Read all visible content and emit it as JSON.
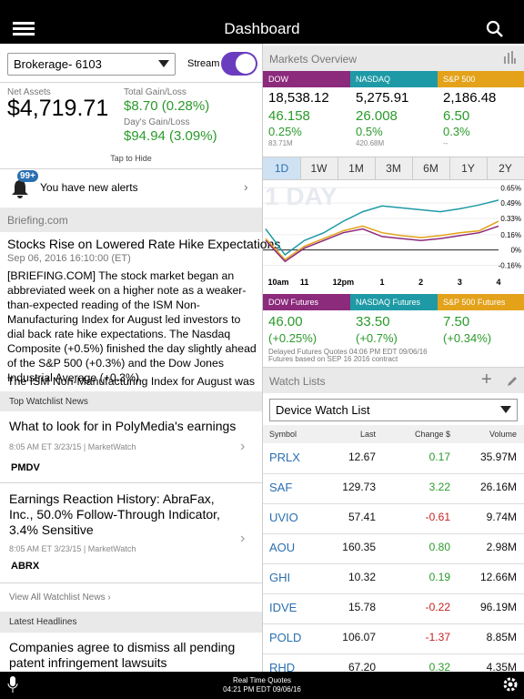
{
  "header": {
    "title": "Dashboard"
  },
  "account": {
    "name": "Brokerage- 6103",
    "stream": "Stream",
    "net_assets_label": "Net Assets",
    "net_assets": "$4,719.71",
    "total_gain_label": "Total Gain/Loss",
    "total_gain": "$8.70 (0.28%)",
    "day_gain_label": "Day's Gain/Loss",
    "day_gain": "$94.94 (3.09%)",
    "tap_hide": "Tap to Hide"
  },
  "alerts": {
    "badge": "99+",
    "text": "You have new alerts"
  },
  "briefing": {
    "source": "Briefing.com",
    "headline": "Stocks Rise on Lowered Rate Hike Expectations",
    "date": "Sep 06, 2016 16:10:00 (ET)",
    "body": "[BRIEFING.COM] The stock market began an abbreviated week on a higher note as a weaker-than-expected reading of the ISM Non-Manufacturing Index for August led investors to dial back rate hike expectations. The Nasdaq Composite (+0.5%) finished the day slightly ahead of the S&P 500 (+0.3%) and the Dow Jones Industrial Average (+0.3%).",
    "body2": "The ISM Non-Manufacturing Index for August was a"
  },
  "watchlist_news": {
    "title": "Top Watchlist News",
    "items": [
      {
        "headline": "What to look for in PolyMedia's earnings",
        "meta": "8:05 AM ET 3/23/15 | MarketWatch",
        "symbol": "PMDV"
      },
      {
        "headline": "Earnings Reaction History: AbraFax, Inc., 50.0% Follow-Through Indicator, 3.4% Sensitive",
        "meta": "8:05 AM ET 3/23/15 | MarketWatch",
        "symbol": "ABRX"
      }
    ],
    "footer": "View All Watchlist News"
  },
  "latest": {
    "title": "Latest Headlines",
    "items": [
      {
        "headline": "Companies agree to dismiss all pending patent infringement lawsuits"
      }
    ]
  },
  "markets": {
    "title": "Markets Overview",
    "indices": [
      {
        "name": "DOW",
        "color": "#8c2a7c",
        "value": "18,538.12",
        "change": "46.158",
        "pct": "0.25%",
        "volume": "83.71M"
      },
      {
        "name": "NASDAQ",
        "color": "#1e9aa6",
        "value": "5,275.91",
        "change": "26.008",
        "pct": "0.5%",
        "volume": "420.68M"
      },
      {
        "name": "S&P 500",
        "color": "#e3a21a",
        "value": "2,186.48",
        "change": "6.50",
        "pct": "0.3%",
        "volume": "--"
      }
    ],
    "ranges": [
      "1D",
      "1W",
      "1M",
      "3M",
      "6M",
      "1Y",
      "2Y"
    ],
    "selected_range": 0,
    "chart": {
      "type": "line",
      "watermark": "1 DAY",
      "categories": [
        "10am",
        null,
        "11",
        null,
        "12pm",
        null,
        "1",
        null,
        "2",
        null,
        "3",
        null,
        "4"
      ],
      "ylim": [
        -0.25,
        0.7
      ],
      "yticks": [
        {
          "value": 0.65,
          "label": "0.65%"
        },
        {
          "value": 0.49,
          "label": "0.49%"
        },
        {
          "value": 0.33,
          "label": "0.33%"
        },
        {
          "value": 0.16,
          "label": "0.16%"
        },
        {
          "value": 0,
          "label": "0%"
        },
        {
          "value": -0.16,
          "label": "-0.16%"
        }
      ],
      "series": [
        {
          "color": "#e3a21a",
          "values": [
            0.12,
            -0.1,
            0.04,
            0.12,
            0.2,
            0.25,
            0.18,
            0.15,
            0.13,
            0.15,
            0.18,
            0.2,
            0.3
          ]
        },
        {
          "color": "#8c2a7c",
          "values": [
            0.1,
            -0.12,
            0.02,
            0.1,
            0.18,
            0.22,
            0.14,
            0.12,
            0.1,
            0.12,
            0.15,
            0.18,
            0.25
          ]
        },
        {
          "color": "#1e9aa6",
          "values": [
            0.22,
            -0.05,
            0.1,
            0.18,
            0.3,
            0.4,
            0.46,
            0.44,
            0.42,
            0.4,
            0.43,
            0.47,
            0.52
          ]
        }
      ]
    },
    "futures": [
      {
        "name": "DOW Futures",
        "color": "#8c2a7c",
        "change": "46.00",
        "pct": "(+0.25%)"
      },
      {
        "name": "NASDAQ Futures",
        "color": "#1e9aa6",
        "change": "33.50",
        "pct": "(+0.7%)"
      },
      {
        "name": "S&P 500 Futures",
        "color": "#e3a21a",
        "change": "7.50",
        "pct": "(+0.34%)"
      }
    ],
    "note1": "Delayed Futures Quotes 04:06 PM EDT 09/06/16",
    "note2": "Futures based on SEP 16 2016 contract"
  },
  "watch_lists": {
    "title": "Watch Lists",
    "list_name": "Device Watch List",
    "columns": [
      "Symbol",
      "Last",
      "Change $",
      "Volume"
    ],
    "rows": [
      [
        "PRLX",
        "12.67",
        "0.17",
        "35.97M"
      ],
      [
        "SAF",
        "129.73",
        "3.22",
        "26.16M"
      ],
      [
        "UVIO",
        "57.41",
        "-0.61",
        "9.74M"
      ],
      [
        "AOU",
        "160.35",
        "0.80",
        "2.98M"
      ],
      [
        "GHI",
        "10.32",
        "0.19",
        "12.66M"
      ],
      [
        "IDVE",
        "15.78",
        "-0.22",
        "96.19M"
      ],
      [
        "POLD",
        "106.07",
        "-1.37",
        "8.85M"
      ],
      [
        "RHD",
        "67.20",
        "0.32",
        "4.35M"
      ]
    ]
  },
  "footer": {
    "line1": "Real Time Quotes",
    "line2": "04:21 PM EDT 09/06/16"
  }
}
